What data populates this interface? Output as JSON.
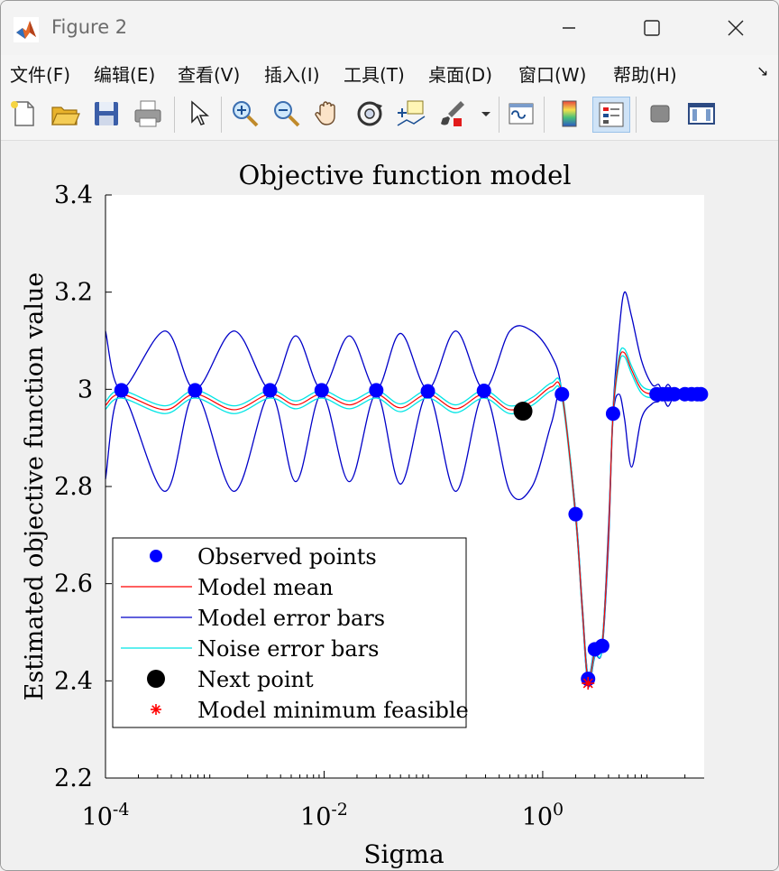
{
  "window": {
    "title": "Figure 2",
    "controls": {
      "minimize": "minimize",
      "maximize": "maximize",
      "close": "close"
    }
  },
  "menu": {
    "items": [
      "文件(F)",
      "编辑(E)",
      "查看(V)",
      "插入(I)",
      "工具(T)",
      "桌面(D)",
      "窗口(W)",
      "帮助(H)"
    ]
  },
  "toolbar": {
    "icons": [
      "new-figure-icon",
      "open-file-icon",
      "save-icon",
      "print-icon",
      "pointer-icon",
      "zoom-in-icon",
      "zoom-out-icon",
      "pan-hand-icon",
      "rotate-3d-icon",
      "data-cursor-icon",
      "brush-icon",
      "dropdown-arrow-icon",
      "link-plot-icon",
      "colorbar-icon",
      "legend-icon",
      "hide-plot-tools-icon",
      "show-plot-tools-icon"
    ]
  },
  "colors": {
    "observed": "#0000ff",
    "model_mean": "#ff0000",
    "model_error_bars": "#0000c8",
    "noise_error_bars": "#00e5e5",
    "next_point": "#000000",
    "model_minimum": "#ff0000"
  },
  "chart_data": {
    "type": "line",
    "title": "Objective function model",
    "xlabel": "Sigma",
    "ylabel": "Estimated objective function value",
    "x_scale": "log",
    "xlim": [
      0.0001,
      30
    ],
    "ylim": [
      2.2,
      3.4
    ],
    "x_ticks": [
      0.0001,
      0.01,
      1
    ],
    "x_tick_labels": [
      {
        "base": "10",
        "exp": "-4"
      },
      {
        "base": "10",
        "exp": "-2"
      },
      {
        "base": "10",
        "exp": "0"
      }
    ],
    "y_ticks": [
      2.2,
      2.4,
      2.6,
      2.8,
      3,
      3.2,
      3.4
    ],
    "y_tick_labels": [
      "2.2",
      "2.4",
      "2.6",
      "2.8",
      "3",
      "3.2",
      "3.4"
    ],
    "grid": false,
    "legend_position": "bottom-left",
    "legend": [
      {
        "label": "Observed points",
        "marker": "dot"
      },
      {
        "label": "Model mean",
        "marker": "line-red"
      },
      {
        "label": "Model error bars",
        "marker": "line-blue"
      },
      {
        "label": "Noise error bars",
        "marker": "line-cyan"
      },
      {
        "label": "Next point",
        "marker": "dot-black"
      },
      {
        "label": "Model minimum feasible",
        "marker": "asterisk"
      }
    ],
    "observed_points": [
      {
        "x": 0.00014,
        "y": 2.998
      },
      {
        "x": 0.00066,
        "y": 2.998
      },
      {
        "x": 0.0032,
        "y": 2.998
      },
      {
        "x": 0.0095,
        "y": 2.998
      },
      {
        "x": 0.03,
        "y": 2.998
      },
      {
        "x": 0.089,
        "y": 2.996
      },
      {
        "x": 0.29,
        "y": 2.997
      },
      {
        "x": 1.5,
        "y": 2.99
      },
      {
        "x": 2.0,
        "y": 2.743
      },
      {
        "x": 2.6,
        "y": 2.404
      },
      {
        "x": 3.0,
        "y": 2.465
      },
      {
        "x": 3.5,
        "y": 2.472
      },
      {
        "x": 4.4,
        "y": 2.95
      },
      {
        "x": 11.0,
        "y": 2.99
      },
      {
        "x": 12.5,
        "y": 2.99
      },
      {
        "x": 14.0,
        "y": 2.99
      },
      {
        "x": 16.0,
        "y": 2.99
      },
      {
        "x": 20.0,
        "y": 2.99
      },
      {
        "x": 23.0,
        "y": 2.99
      },
      {
        "x": 26.0,
        "y": 2.99
      },
      {
        "x": 28.0,
        "y": 2.99
      }
    ],
    "next_point": {
      "x": 0.66,
      "y": 2.955
    },
    "model_minimum_feasible": {
      "x": 2.6,
      "y": 2.395
    },
    "model_mean": {
      "x": [
        0.0001,
        0.00014,
        0.00035,
        0.00066,
        0.0015,
        0.0032,
        0.0055,
        0.0095,
        0.017,
        0.03,
        0.05,
        0.089,
        0.16,
        0.29,
        0.5,
        0.8,
        1.2,
        1.5,
        2.0,
        2.3,
        2.6,
        3.0,
        3.5,
        4.0,
        4.4,
        5.0,
        5.6,
        6.5,
        8.0,
        10.0,
        13.0,
        20.0,
        30.0
      ],
      "y": [
        2.967,
        2.99,
        2.958,
        2.99,
        2.958,
        2.99,
        2.968,
        2.99,
        2.968,
        2.99,
        2.962,
        2.99,
        2.96,
        2.99,
        2.958,
        2.975,
        3.005,
        2.99,
        2.74,
        2.55,
        2.4,
        2.46,
        2.475,
        2.7,
        2.95,
        3.06,
        3.075,
        3.04,
        3.0,
        2.99,
        2.99,
        2.99,
        2.99
      ]
    },
    "noise_error_bars": {
      "x": [
        0.0001,
        0.00014,
        0.00035,
        0.00066,
        0.0015,
        0.0032,
        0.0055,
        0.0095,
        0.017,
        0.03,
        0.05,
        0.089,
        0.16,
        0.29,
        0.5,
        0.8,
        1.2,
        1.5,
        2.0,
        2.3,
        2.6,
        3.0,
        3.5,
        4.0,
        4.4,
        5.0,
        5.6,
        6.5,
        8.0,
        10.0,
        13.0,
        20.0,
        30.0
      ],
      "upper": [
        2.975,
        2.998,
        2.966,
        2.998,
        2.966,
        2.998,
        2.976,
        2.998,
        2.976,
        2.998,
        2.97,
        2.998,
        2.968,
        2.998,
        2.966,
        2.983,
        3.013,
        2.998,
        2.748,
        2.558,
        2.408,
        2.468,
        2.483,
        2.708,
        2.958,
        3.068,
        3.083,
        3.048,
        3.008,
        2.998,
        2.998,
        2.998,
        2.998
      ],
      "lower": [
        2.959,
        2.982,
        2.95,
        2.982,
        2.95,
        2.982,
        2.96,
        2.982,
        2.96,
        2.982,
        2.954,
        2.982,
        2.952,
        2.982,
        2.95,
        2.967,
        2.997,
        2.982,
        2.732,
        2.542,
        2.392,
        2.452,
        2.467,
        2.692,
        2.942,
        3.052,
        3.067,
        3.032,
        2.992,
        2.982,
        2.982,
        2.982,
        2.982
      ]
    },
    "model_error_bars": {
      "x": [
        0.0001,
        0.00014,
        0.00035,
        0.00066,
        0.0015,
        0.0032,
        0.0055,
        0.0095,
        0.017,
        0.03,
        0.05,
        0.089,
        0.16,
        0.29,
        0.5,
        0.8,
        1.2,
        1.5,
        2.0,
        2.3,
        2.6,
        3.0,
        3.5,
        4.0,
        4.4,
        5.0,
        5.6,
        6.5,
        8.0,
        10.0,
        11.5,
        12.5,
        14.0,
        16.0,
        20.0,
        30.0
      ],
      "upper": [
        3.12,
        3.0,
        3.12,
        3.0,
        3.12,
        3.0,
        3.11,
        3.0,
        3.11,
        3.0,
        3.115,
        3.0,
        3.12,
        3.0,
        3.12,
        3.12,
        3.07,
        2.995,
        2.75,
        2.56,
        2.41,
        2.47,
        2.48,
        2.72,
        2.96,
        3.12,
        3.2,
        3.15,
        3.06,
        3.01,
        3.01,
        2.995,
        3.01,
        2.995,
        3.0,
        2.995
      ],
      "lower": [
        2.815,
        2.99,
        2.79,
        2.99,
        2.79,
        2.99,
        2.81,
        2.99,
        2.81,
        2.99,
        2.805,
        2.99,
        2.79,
        2.99,
        2.79,
        2.8,
        2.93,
        2.985,
        2.735,
        2.54,
        2.39,
        2.45,
        2.465,
        2.68,
        2.94,
        2.99,
        2.94,
        2.84,
        2.94,
        2.97,
        2.975,
        2.985,
        2.965,
        2.985,
        2.98,
        2.985
      ]
    }
  }
}
